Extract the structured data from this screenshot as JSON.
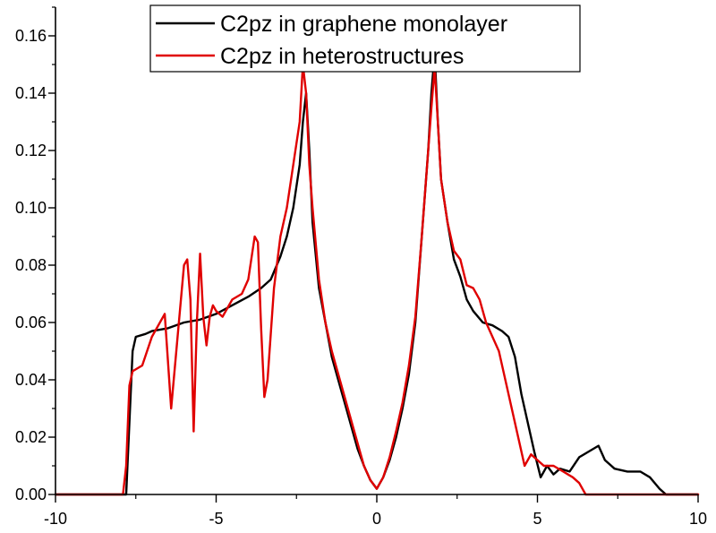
{
  "chart_data": {
    "type": "line",
    "title": "",
    "xlabel": "",
    "ylabel": "",
    "xlim": [
      -10,
      10
    ],
    "ylim": [
      0,
      0.17
    ],
    "x_ticks": [
      -10,
      -5,
      0,
      5,
      10
    ],
    "x_tick_labels": [
      "-10",
      "-5",
      "0",
      "5",
      "10"
    ],
    "y_ticks": [
      0.0,
      0.02,
      0.04,
      0.06,
      0.08,
      0.1,
      0.12,
      0.14,
      0.16
    ],
    "y_tick_labels": [
      "0.00",
      "0.02",
      "0.04",
      "0.06",
      "0.08",
      "0.10",
      "0.12",
      "0.14",
      "0.16"
    ],
    "grid": false,
    "legend_position": "top-right",
    "series": [
      {
        "name": "C2pz in graphene monolayer",
        "color": "#000000",
        "x": [
          -10,
          -7.9,
          -7.8,
          -7.6,
          -7.5,
          -7.2,
          -7.0,
          -6.5,
          -6.0,
          -5.5,
          -5.0,
          -4.5,
          -4.0,
          -3.6,
          -3.3,
          -3.0,
          -2.8,
          -2.6,
          -2.4,
          -2.3,
          -2.2,
          -2.1,
          -2.0,
          -1.8,
          -1.6,
          -1.4,
          -1.2,
          -1.0,
          -0.8,
          -0.6,
          -0.4,
          -0.2,
          0.0,
          0.2,
          0.4,
          0.6,
          0.8,
          1.0,
          1.2,
          1.4,
          1.6,
          1.7,
          1.8,
          1.9,
          2.0,
          2.2,
          2.4,
          2.6,
          2.8,
          3.0,
          3.3,
          3.6,
          3.9,
          4.1,
          4.3,
          4.5,
          4.7,
          4.9,
          5.1,
          5.3,
          5.5,
          5.7,
          6.0,
          6.3,
          6.6,
          6.9,
          7.1,
          7.4,
          7.8,
          8.2,
          8.5,
          8.8,
          9.0,
          10
        ],
        "y": [
          0.0,
          0.0,
          0.0,
          0.05,
          0.055,
          0.056,
          0.057,
          0.058,
          0.06,
          0.061,
          0.063,
          0.066,
          0.069,
          0.072,
          0.075,
          0.083,
          0.09,
          0.1,
          0.115,
          0.13,
          0.14,
          0.12,
          0.095,
          0.072,
          0.06,
          0.048,
          0.04,
          0.032,
          0.024,
          0.016,
          0.01,
          0.005,
          0.002,
          0.006,
          0.012,
          0.02,
          0.03,
          0.042,
          0.06,
          0.09,
          0.12,
          0.14,
          0.154,
          0.13,
          0.11,
          0.095,
          0.082,
          0.076,
          0.068,
          0.064,
          0.06,
          0.059,
          0.057,
          0.055,
          0.048,
          0.035,
          0.025,
          0.015,
          0.006,
          0.01,
          0.007,
          0.009,
          0.008,
          0.013,
          0.015,
          0.017,
          0.012,
          0.009,
          0.008,
          0.008,
          0.006,
          0.002,
          0.0,
          0.0
        ]
      },
      {
        "name": "C2pz in heterostructures",
        "color": "#e00000",
        "x": [
          -10,
          -8.0,
          -7.9,
          -7.8,
          -7.7,
          -7.6,
          -7.3,
          -7.0,
          -6.6,
          -6.4,
          -6.2,
          -6.0,
          -5.9,
          -5.8,
          -5.7,
          -5.6,
          -5.5,
          -5.4,
          -5.3,
          -5.2,
          -5.1,
          -5.0,
          -4.8,
          -4.5,
          -4.2,
          -4.0,
          -3.8,
          -3.7,
          -3.6,
          -3.5,
          -3.4,
          -3.3,
          -3.2,
          -3.0,
          -2.8,
          -2.6,
          -2.4,
          -2.3,
          -2.2,
          -2.1,
          -2.0,
          -1.8,
          -1.6,
          -1.4,
          -1.2,
          -1.0,
          -0.8,
          -0.6,
          -0.4,
          -0.2,
          0.0,
          0.2,
          0.4,
          0.6,
          0.8,
          1.0,
          1.2,
          1.4,
          1.6,
          1.7,
          1.8,
          1.9,
          2.0,
          2.2,
          2.4,
          2.6,
          2.8,
          3.0,
          3.2,
          3.4,
          3.6,
          3.8,
          4.0,
          4.2,
          4.4,
          4.6,
          4.8,
          5.0,
          5.2,
          5.5,
          5.8,
          6.1,
          6.3,
          6.5,
          6.6,
          10
        ],
        "y": [
          0.0,
          0.0,
          0.0,
          0.01,
          0.038,
          0.043,
          0.045,
          0.055,
          0.063,
          0.03,
          0.055,
          0.08,
          0.082,
          0.068,
          0.022,
          0.06,
          0.084,
          0.062,
          0.052,
          0.062,
          0.066,
          0.064,
          0.062,
          0.068,
          0.07,
          0.075,
          0.09,
          0.088,
          0.058,
          0.034,
          0.04,
          0.056,
          0.072,
          0.09,
          0.1,
          0.115,
          0.13,
          0.15,
          0.14,
          0.115,
          0.1,
          0.075,
          0.06,
          0.05,
          0.042,
          0.034,
          0.026,
          0.018,
          0.01,
          0.005,
          0.002,
          0.006,
          0.013,
          0.022,
          0.032,
          0.045,
          0.062,
          0.09,
          0.12,
          0.135,
          0.149,
          0.13,
          0.11,
          0.095,
          0.085,
          0.082,
          0.073,
          0.072,
          0.068,
          0.06,
          0.055,
          0.05,
          0.04,
          0.03,
          0.02,
          0.01,
          0.014,
          0.012,
          0.01,
          0.01,
          0.008,
          0.006,
          0.004,
          0.0,
          0.0,
          0.0
        ]
      }
    ]
  }
}
